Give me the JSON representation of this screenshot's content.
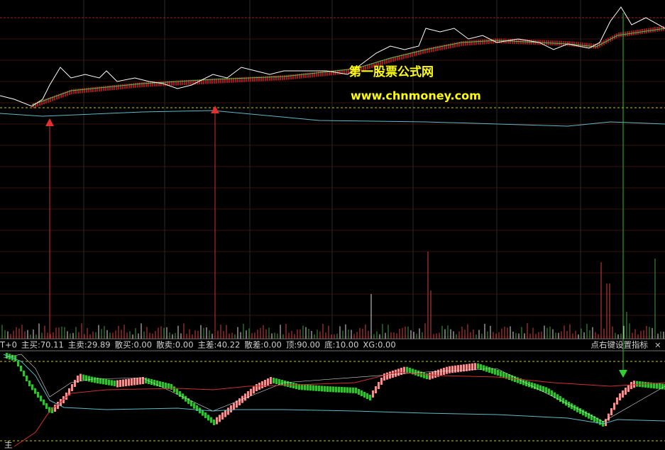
{
  "watermark": {
    "name": "第一股票公式网",
    "url": "www.chnmoney.com"
  },
  "indicator_bar": {
    "items": [
      "T+0",
      "主买:70.11",
      "主卖:29.89",
      "散买:0.00",
      "散卖:0.00",
      "主差:40.22",
      "散差:0.00",
      "顶:90.00",
      "底:10.00",
      "XG:0.00"
    ],
    "hint": "点右键设置指标"
  },
  "lower_panel": {
    "label": "主"
  }
}
